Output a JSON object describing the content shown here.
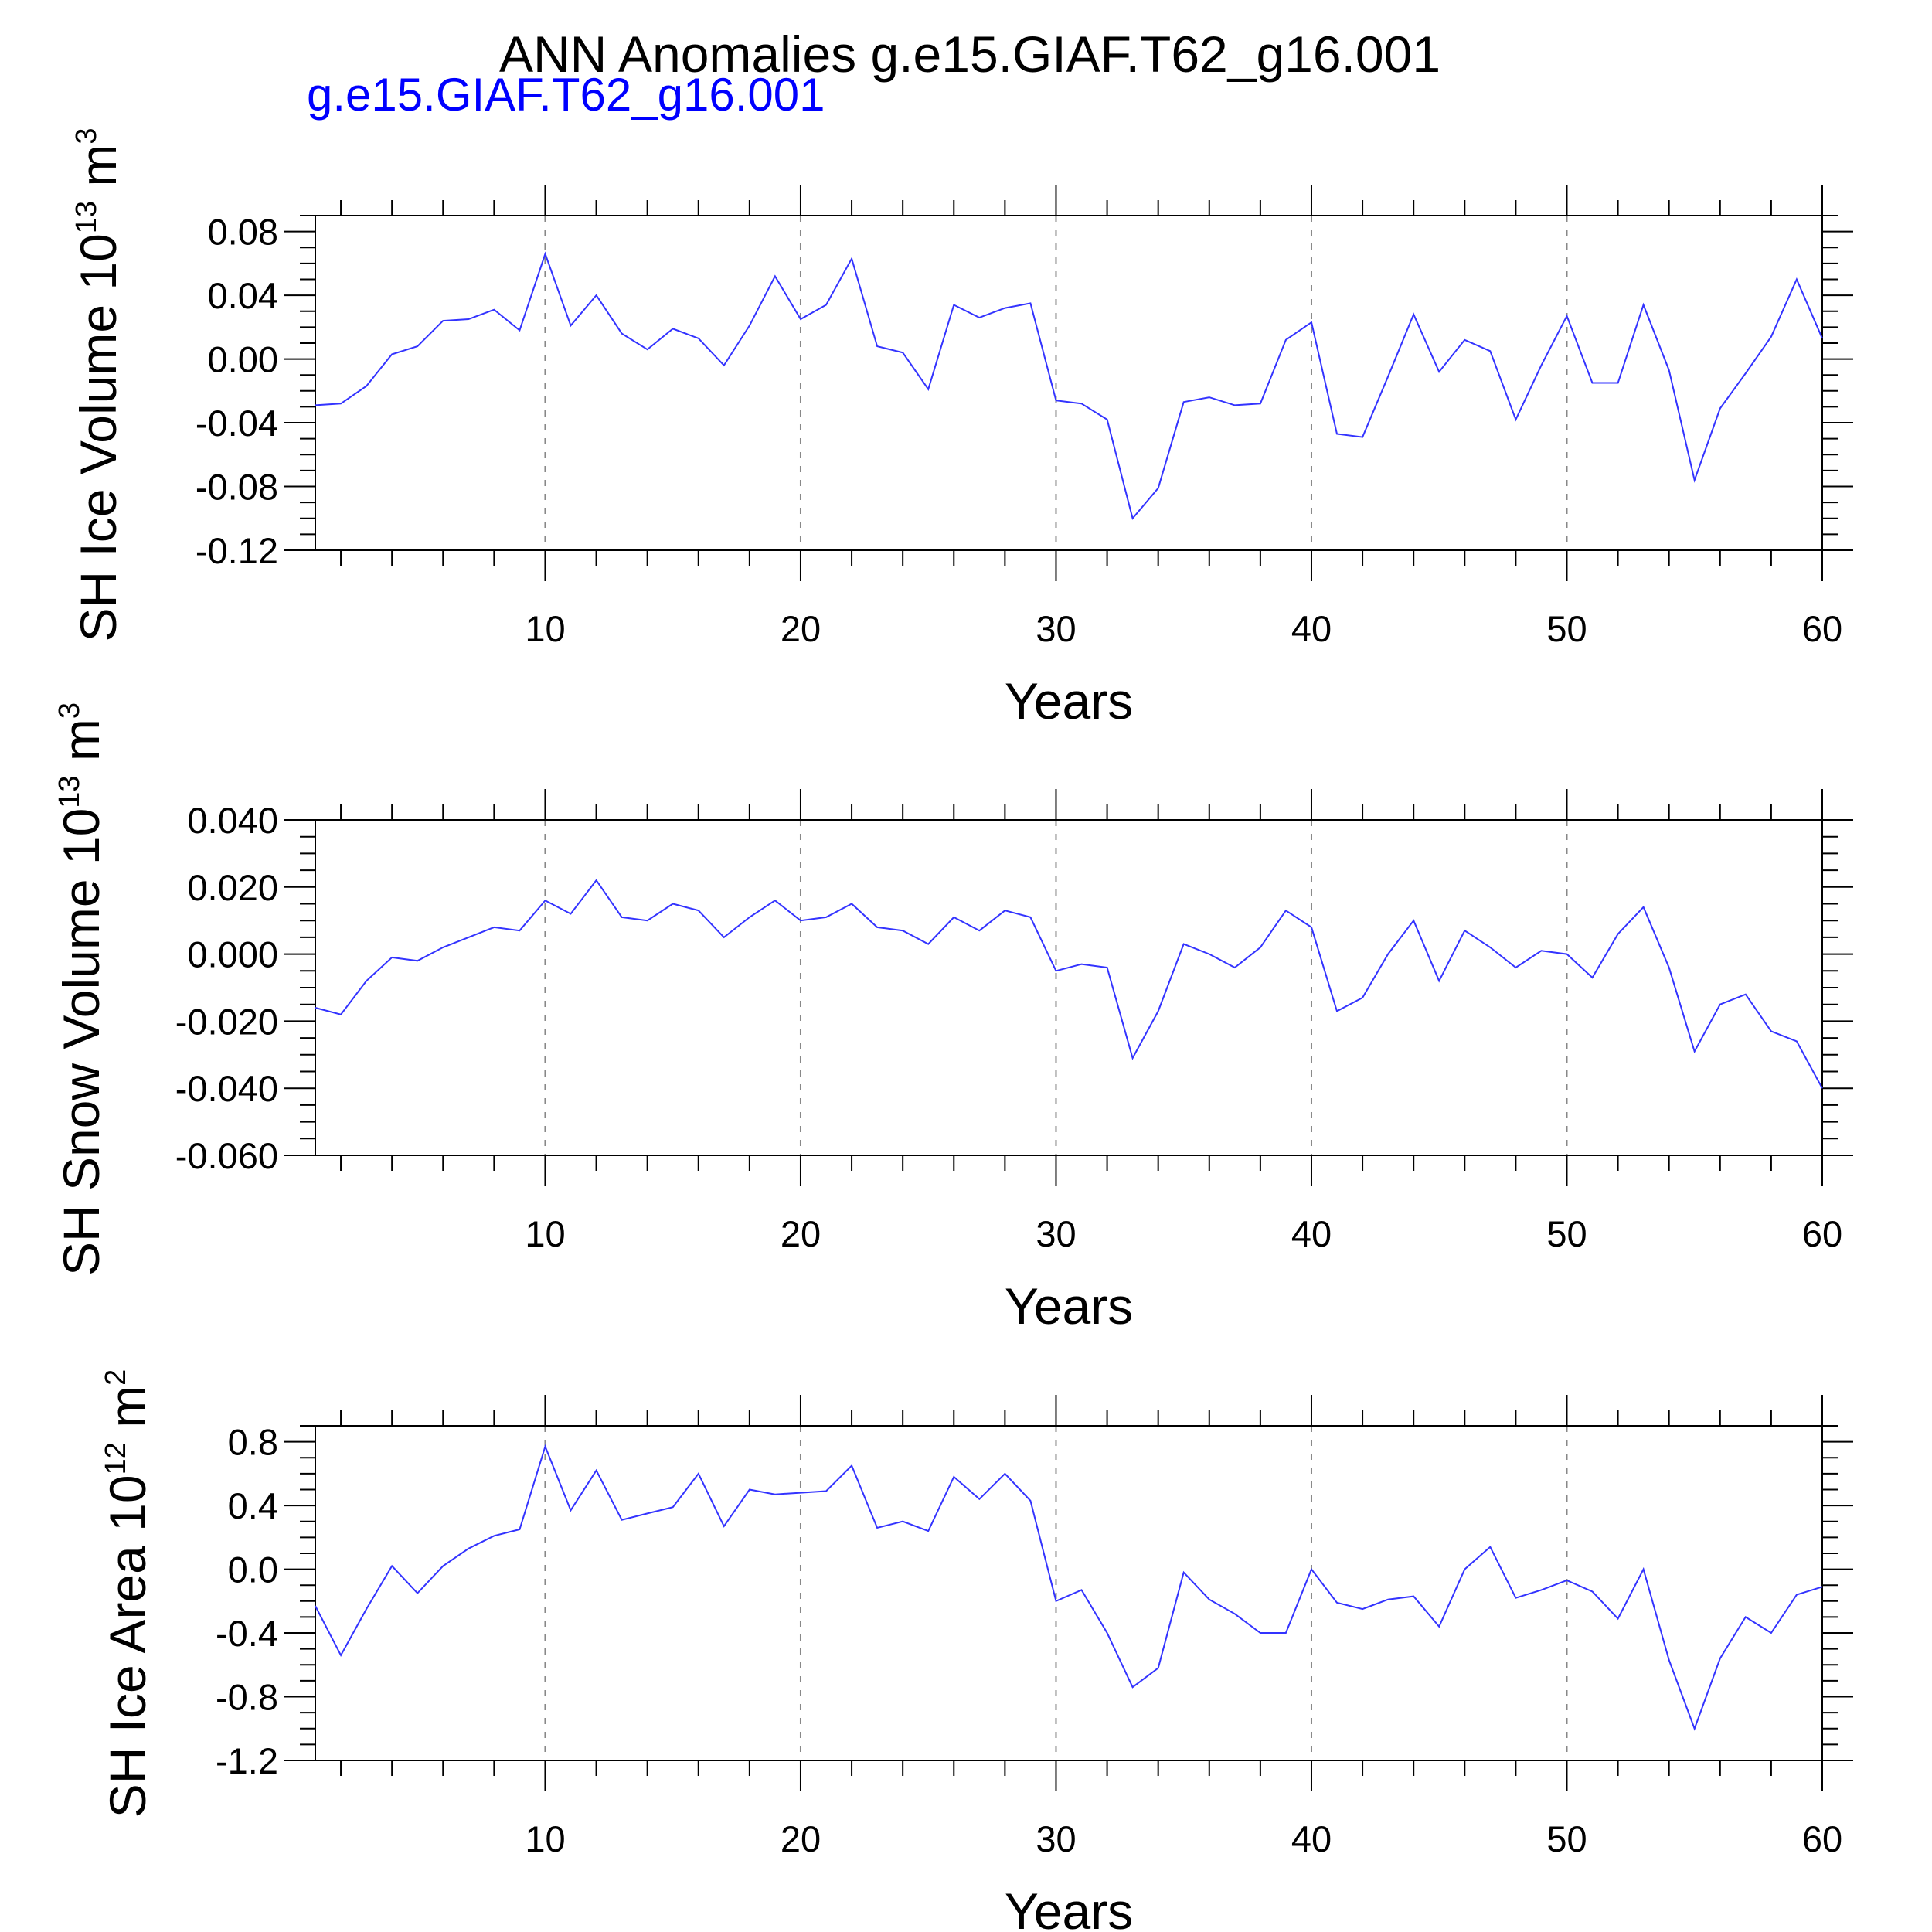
{
  "figure": {
    "title": "ANN Anomalies g.e15.GIAF.T62_g16.001",
    "subtitle": "g.e15.GIAF.T62_g16.001"
  },
  "colors": {
    "line": "#3333ff",
    "subtitle": "#0000ff"
  },
  "chart_data": [
    {
      "type": "line",
      "title": "",
      "xlabel": "Years",
      "ylabel": "SH Ice Volume 10",
      "ylabel_exp": "13",
      "ylabel_unit": "m",
      "ylabel_unit_exp": "3",
      "xlim": [
        1,
        60
      ],
      "ylim": [
        -0.12,
        0.09
      ],
      "xticks": [
        10,
        20,
        30,
        40,
        50,
        60
      ],
      "xtick_labels": [
        "10",
        "20",
        "30",
        "40",
        "50",
        "60"
      ],
      "yticks": [
        0.08,
        0.04,
        0.0,
        -0.04,
        -0.08,
        -0.12
      ],
      "ytick_labels": [
        "0.08",
        "0.04",
        "0.00",
        "-0.04",
        "-0.08",
        "-0.12"
      ],
      "grid": "vertical dashed at x ticks",
      "series": [
        {
          "x": [
            1,
            2,
            3,
            4,
            5,
            6,
            7,
            8,
            9,
            10,
            11,
            12,
            13,
            14,
            15,
            16,
            17,
            18,
            19,
            20,
            21,
            22,
            23,
            24,
            25,
            26,
            27,
            28,
            29,
            30,
            31,
            32,
            33,
            34,
            35,
            36,
            37,
            38,
            39,
            40,
            41,
            42,
            43,
            44,
            45,
            46,
            47,
            48,
            49,
            50,
            51,
            52,
            53,
            54,
            55,
            56,
            57,
            58,
            59,
            60
          ],
          "values": [
            -0.029,
            -0.028,
            -0.017,
            0.003,
            0.008,
            0.024,
            0.025,
            0.031,
            0.018,
            0.066,
            0.021,
            0.04,
            0.016,
            0.006,
            0.019,
            0.013,
            -0.004,
            0.021,
            0.052,
            0.025,
            0.034,
            0.063,
            0.008,
            0.004,
            -0.019,
            0.034,
            0.026,
            0.032,
            0.035,
            -0.026,
            -0.028,
            -0.038,
            -0.1,
            -0.081,
            -0.027,
            -0.024,
            -0.029,
            -0.028,
            0.012,
            0.023,
            -0.047,
            -0.049,
            -0.011,
            0.028,
            -0.008,
            0.012,
            0.005,
            -0.038,
            -0.004,
            0.027,
            -0.015,
            -0.015,
            0.034,
            -0.007,
            -0.076,
            -0.031,
            -0.009,
            0.014,
            0.05,
            0.013
          ]
        }
      ]
    },
    {
      "type": "line",
      "title": "",
      "xlabel": "Years",
      "ylabel": "SH Snow Volume 10",
      "ylabel_exp": "13",
      "ylabel_unit": "m",
      "ylabel_unit_exp": "3",
      "xlim": [
        1,
        60
      ],
      "ylim": [
        -0.06,
        0.04
      ],
      "xticks": [
        10,
        20,
        30,
        40,
        50,
        60
      ],
      "xtick_labels": [
        "10",
        "20",
        "30",
        "40",
        "50",
        "60"
      ],
      "yticks": [
        0.04,
        0.02,
        0.0,
        -0.02,
        -0.04,
        -0.06
      ],
      "ytick_labels": [
        "0.040",
        "0.020",
        "0.000",
        "-0.020",
        "-0.040",
        "-0.060"
      ],
      "grid": "vertical dashed at x ticks",
      "series": [
        {
          "x": [
            1,
            2,
            3,
            4,
            5,
            6,
            7,
            8,
            9,
            10,
            11,
            12,
            13,
            14,
            15,
            16,
            17,
            18,
            19,
            20,
            21,
            22,
            23,
            24,
            25,
            26,
            27,
            28,
            29,
            30,
            31,
            32,
            33,
            34,
            35,
            36,
            37,
            38,
            39,
            40,
            41,
            42,
            43,
            44,
            45,
            46,
            47,
            48,
            49,
            50,
            51,
            52,
            53,
            54,
            55,
            56,
            57,
            58,
            59,
            60
          ],
          "values": [
            -0.016,
            -0.018,
            -0.008,
            -0.001,
            -0.002,
            0.002,
            0.005,
            0.008,
            0.007,
            0.016,
            0.012,
            0.022,
            0.011,
            0.01,
            0.015,
            0.013,
            0.005,
            0.011,
            0.016,
            0.01,
            0.011,
            0.015,
            0.008,
            0.007,
            0.003,
            0.011,
            0.007,
            0.013,
            0.011,
            -0.005,
            -0.003,
            -0.004,
            -0.031,
            -0.017,
            0.003,
            0.0,
            -0.004,
            0.002,
            0.013,
            0.008,
            -0.017,
            -0.013,
            0.0,
            0.01,
            -0.008,
            0.007,
            0.002,
            -0.004,
            0.001,
            0.0,
            -0.007,
            0.006,
            0.014,
            -0.004,
            -0.029,
            -0.015,
            -0.012,
            -0.023,
            -0.026,
            -0.04
          ]
        }
      ]
    },
    {
      "type": "line",
      "title": "",
      "xlabel": "Years",
      "ylabel": "SH Ice Area 10",
      "ylabel_exp": "12",
      "ylabel_unit": "m",
      "ylabel_unit_exp": "2",
      "xlim": [
        1,
        60
      ],
      "ylim": [
        -1.2,
        0.9
      ],
      "xticks": [
        10,
        20,
        30,
        40,
        50,
        60
      ],
      "xtick_labels": [
        "10",
        "20",
        "30",
        "40",
        "50",
        "60"
      ],
      "yticks": [
        0.8,
        0.4,
        0.0,
        -0.4,
        -0.8,
        -1.2
      ],
      "ytick_labels": [
        "0.8",
        "0.4",
        "0.0",
        "-0.4",
        "-0.8",
        "-1.2"
      ],
      "grid": "vertical dashed at x ticks",
      "series": [
        {
          "x": [
            1,
            2,
            3,
            4,
            5,
            6,
            7,
            8,
            9,
            10,
            11,
            12,
            13,
            14,
            15,
            16,
            17,
            18,
            19,
            20,
            21,
            22,
            23,
            24,
            25,
            26,
            27,
            28,
            29,
            30,
            31,
            32,
            33,
            34,
            35,
            36,
            37,
            38,
            39,
            40,
            41,
            42,
            43,
            44,
            45,
            46,
            47,
            48,
            49,
            50,
            51,
            52,
            53,
            54,
            55,
            56,
            57,
            58,
            59,
            60
          ],
          "values": [
            -0.23,
            -0.54,
            -0.25,
            0.02,
            -0.15,
            0.02,
            0.13,
            0.21,
            0.25,
            0.77,
            0.37,
            0.62,
            0.31,
            0.35,
            0.39,
            0.6,
            0.27,
            0.5,
            0.47,
            0.48,
            0.49,
            0.65,
            0.26,
            0.3,
            0.24,
            0.58,
            0.44,
            0.6,
            0.43,
            -0.2,
            -0.13,
            -0.4,
            -0.74,
            -0.62,
            -0.02,
            -0.19,
            -0.28,
            -0.4,
            -0.4,
            0.0,
            -0.21,
            -0.25,
            -0.19,
            -0.17,
            -0.36,
            0.0,
            0.14,
            -0.18,
            -0.13,
            -0.07,
            -0.14,
            -0.31,
            0.0,
            -0.57,
            -1.0,
            -0.56,
            -0.3,
            -0.4,
            -0.16,
            -0.11
          ]
        }
      ]
    }
  ]
}
